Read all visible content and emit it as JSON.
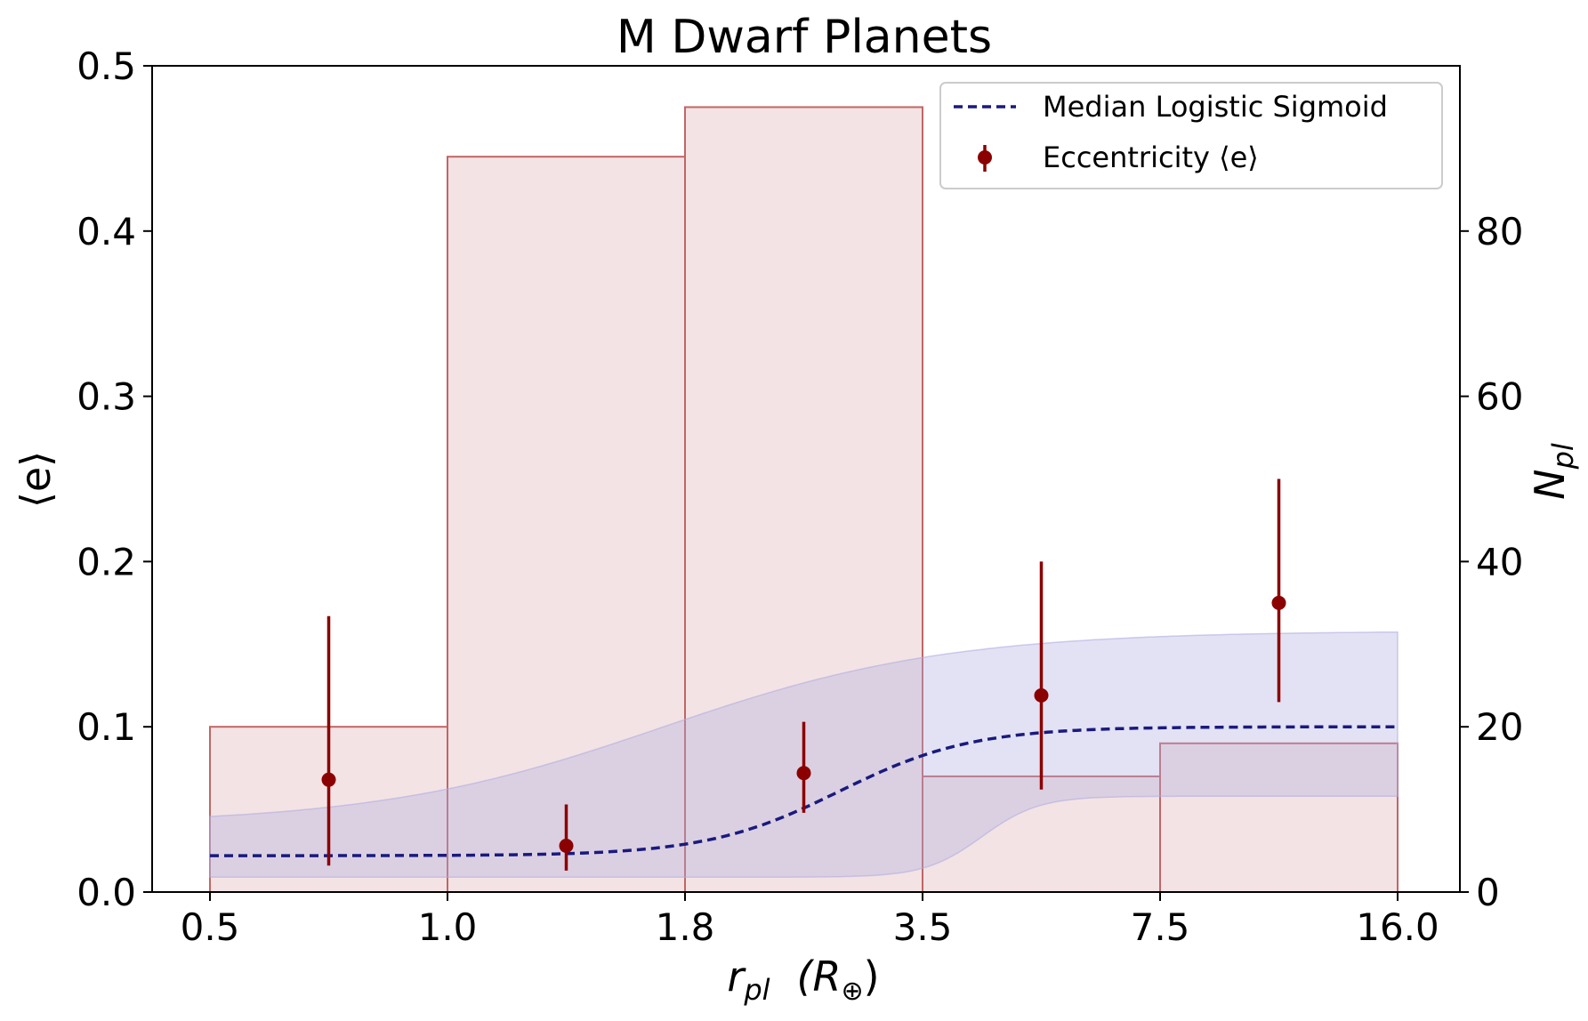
{
  "chart_data": {
    "type": "bar+line+errorbar",
    "title": "M Dwarf Planets",
    "xlabel": {
      "main": "r",
      "sub": "pl",
      "unit": "(R",
      "unit_sub": "⊕",
      "close": ")"
    },
    "ylabel_left": "⟨e⟩",
    "ylabel_right": {
      "main": "N",
      "sub": "pl"
    },
    "bin_edges": [
      0.5,
      1.0,
      1.8,
      3.5,
      7.5,
      16.0
    ],
    "x_tick_labels": [
      "0.5",
      "1.0",
      "1.8",
      "3.5",
      "7.5",
      "16.0"
    ],
    "ylim_left": [
      0,
      0.5
    ],
    "y_ticks_left": [
      "0.0",
      "0.1",
      "0.2",
      "0.3",
      "0.4",
      "0.5"
    ],
    "ylim_right": [
      0,
      100
    ],
    "y_ticks_right": [
      "0",
      "20",
      "40",
      "60",
      "80"
    ],
    "histogram": {
      "name": "N_pl",
      "counts": [
        20,
        89,
        95,
        14,
        18
      ],
      "fill": "#f3e3e4",
      "edge": "#c06666"
    },
    "eccentricity": {
      "name": "Eccentricity ⟨e⟩",
      "bin_index": [
        0.5,
        1.5,
        2.5,
        3.5,
        4.5
      ],
      "values": [
        0.068,
        0.028,
        0.072,
        0.119,
        0.175
      ],
      "lower": [
        0.016,
        0.013,
        0.048,
        0.062,
        0.115
      ],
      "upper": [
        0.167,
        0.053,
        0.103,
        0.2,
        0.25
      ],
      "color": "#8b0000"
    },
    "sigmoid": {
      "name": "Median Logistic Sigmoid",
      "low": 0.022,
      "high": 0.1,
      "center_bin": 2.65,
      "scale_bin": 0.28,
      "color": "#1a1a7e",
      "band_color": "#b0ade0",
      "band_upper": {
        "low": 0.041,
        "high": 0.158,
        "center_bin": 1.9,
        "scale_bin": 0.6
      },
      "band_lower": {
        "low": 0.009,
        "high": 0.058,
        "center_bin": 3.25,
        "scale_bin": 0.12
      }
    },
    "legend": {
      "position": "top-right",
      "entries": [
        "Median Logistic Sigmoid",
        "Eccentricity ⟨e⟩"
      ]
    }
  }
}
